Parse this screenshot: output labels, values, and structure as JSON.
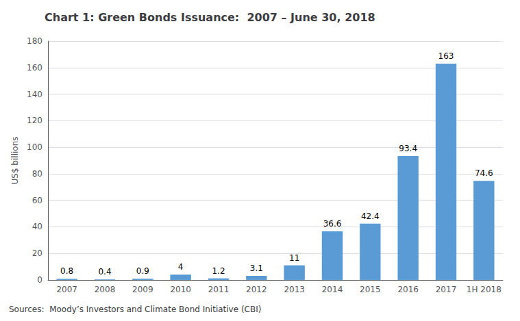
{
  "chart_data": {
    "type": "bar",
    "title": "Chart 1: Green Bonds Issuance:  2007 – June 30, 2018",
    "categories": [
      "2007",
      "2008",
      "2009",
      "2010",
      "2011",
      "2012",
      "2013",
      "2014",
      "2015",
      "2016",
      "2017",
      "1H 2018"
    ],
    "values": [
      0.8,
      0.4,
      0.9,
      4.0,
      1.2,
      3.1,
      11.0,
      36.6,
      42.4,
      93.4,
      163.0,
      74.6
    ],
    "color": "#5b9bd5",
    "ylabel": "US$ billions",
    "ylim": [
      0,
      180
    ],
    "yticks": [
      0,
      20,
      40,
      60,
      80,
      100,
      120,
      140,
      160,
      180
    ],
    "grid": true,
    "data_labels": true,
    "annotations": [
      "Sources:  Moody’s Investors and Climate Bond Initiative (CBI)"
    ]
  }
}
